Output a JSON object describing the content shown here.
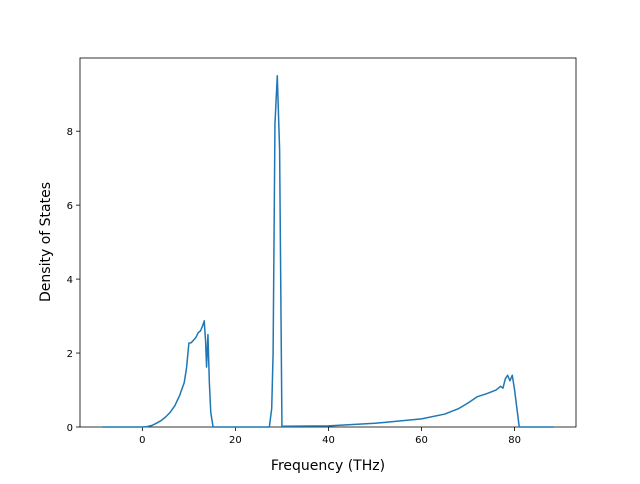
{
  "chart_data": {
    "type": "line",
    "x_label": "Frequency (THz)",
    "y_label": "Density of States",
    "x": [
      -8.6,
      0,
      1,
      2,
      3,
      4,
      5,
      6,
      7,
      8,
      9,
      9.5,
      10,
      10.5,
      11,
      11.5,
      12,
      12.5,
      13,
      13.3,
      13.6,
      13.8,
      14.1,
      14.4,
      14.7,
      15.2,
      27.3,
      27.8,
      28.1,
      28.5,
      29,
      29.5,
      30,
      40,
      50,
      60,
      65,
      68,
      70,
      72,
      74,
      76,
      77,
      77.5,
      78,
      78.5,
      79,
      79.5,
      80,
      80.5,
      81,
      88.4
    ],
    "series": [
      {
        "name": "DOS",
        "color": "#1f77b4",
        "values": [
          0,
          0,
          0.01,
          0.04,
          0.1,
          0.17,
          0.27,
          0.4,
          0.58,
          0.85,
          1.2,
          1.6,
          2.27,
          2.28,
          2.35,
          2.42,
          2.55,
          2.6,
          2.75,
          2.87,
          2.3,
          1.62,
          2.5,
          1.2,
          0.4,
          0,
          0,
          0.5,
          2.0,
          8.2,
          9.5,
          7.5,
          0.02,
          0.03,
          0.1,
          0.22,
          0.35,
          0.5,
          0.65,
          0.82,
          0.9,
          1.0,
          1.1,
          1.05,
          1.3,
          1.4,
          1.25,
          1.4,
          1.0,
          0.5,
          0,
          0
        ]
      }
    ],
    "xlim": [
      -13.4,
      93.2
    ],
    "xticks": [
      0,
      20,
      40,
      60,
      80
    ],
    "ylim": [
      0,
      9.98
    ],
    "yticks": [
      0,
      2,
      4,
      6,
      8
    ],
    "grid": false
  }
}
